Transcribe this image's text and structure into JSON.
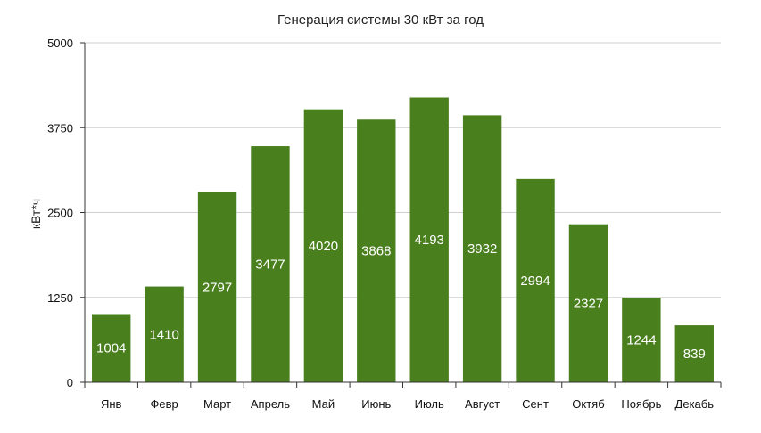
{
  "chart_data": {
    "type": "bar",
    "title": "Генерация системы 30 кВт за год",
    "xlabel": "",
    "ylabel": "кВт*ч",
    "categories": [
      "Янв",
      "Февр",
      "Март",
      "Апрель",
      "Май",
      "Июнь",
      "Июль",
      "Август",
      "Сент",
      "Октяб",
      "Ноябрь",
      "Декабь"
    ],
    "values": [
      1004,
      1410,
      2797,
      3477,
      4020,
      3868,
      4193,
      3932,
      2994,
      2327,
      1244,
      839
    ],
    "data_labels": [
      "1004",
      "1410",
      "2797",
      "3477",
      "4020",
      "3868",
      "4193",
      "3932",
      "2994",
      "2327",
      "1244",
      "839"
    ],
    "ylim": [
      0,
      5000
    ],
    "yticks": [
      0,
      1250,
      2500,
      3750,
      5000
    ],
    "ytick_labels": [
      "0",
      "1250",
      "2500",
      "3750",
      "5000"
    ],
    "grid": true,
    "legend": false,
    "colors": {
      "bar": "#4a7f1e",
      "grid": "#cfcfcf",
      "axis": "#333333"
    }
  }
}
